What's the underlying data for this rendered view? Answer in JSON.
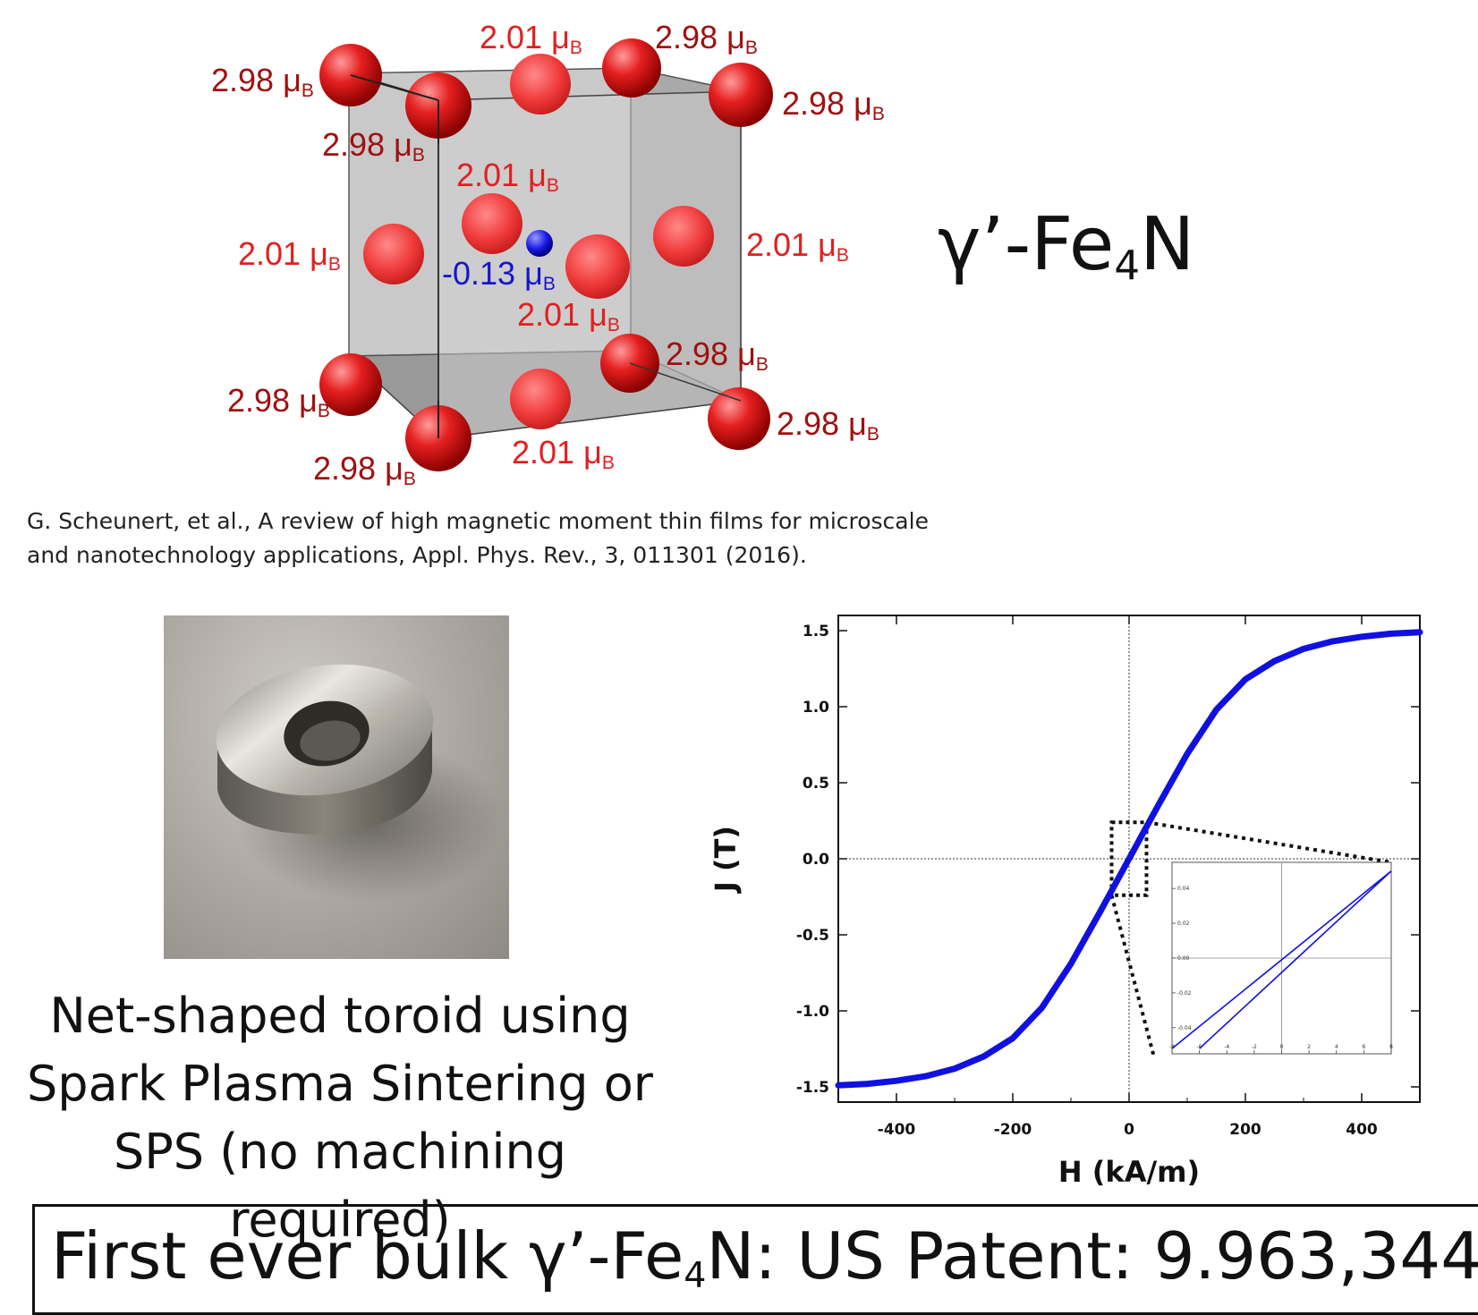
{
  "structure": {
    "formula": {
      "base": "γ’-Fe",
      "sub": "4",
      "tail": "N"
    },
    "moment_unit": "μ",
    "moment_unit_sub": "B",
    "moments": {
      "corner_top_back_left": "2.98",
      "corner_top_front_left": "2.98",
      "corner_top_back_right": "2.98",
      "corner_top_front_right": "2.98",
      "corner_bottom_back_left": "2.98",
      "corner_bottom_front_left": "2.98",
      "corner_bottom_back_right": "2.98",
      "corner_bottom_front_right": "2.98",
      "face_top": "2.01",
      "face_left": "2.01",
      "face_right": "2.01",
      "face_back": "2.01",
      "face_front": "2.01",
      "face_bottom": "2.01",
      "nitrogen_center": "-0.13"
    },
    "colors": {
      "iron_atom": "#d61c1c",
      "nitrogen_atom": "#1a1ae6",
      "corner_label": "#a01010",
      "face_label": "#e02020",
      "nitrogen_label": "#1515d0"
    }
  },
  "citation": {
    "line1": "G. Scheunert, et al., A review of high magnetic moment thin films for microscale",
    "line2": "and nanotechnology applications,  Appl. Phys. Rev., 3, 011301 (2016)."
  },
  "photo_caption": {
    "line1": "Net-shaped toroid using",
    "line2": "Spark Plasma Sintering or",
    "line3": "SPS (no machining required)"
  },
  "banner": {
    "pre": "First ever bulk γ’-Fe",
    "sub": "4",
    "post": "N:  US Patent:  9.963,344"
  },
  "chart_data": {
    "type": "line",
    "xlabel": "H (kA/m)",
    "ylabel": "J (T)",
    "xlim": [
      -500,
      500
    ],
    "ylim": [
      -1.6,
      1.6
    ],
    "x_ticks": [
      "-400",
      "-200",
      "0",
      "200",
      "400"
    ],
    "y_ticks": [
      "1.5",
      "1.0",
      "0.5",
      "0.0",
      "-0.5",
      "-1.0",
      "-1.5"
    ],
    "series": [
      {
        "color": "#1010e0",
        "x": [
          -500,
          -450,
          -400,
          -350,
          -300,
          -250,
          -200,
          -150,
          -100,
          -50,
          0,
          50,
          100,
          150,
          200,
          250,
          300,
          350,
          400,
          450,
          500
        ],
        "y": [
          -1.49,
          -1.48,
          -1.46,
          -1.43,
          -1.38,
          -1.3,
          -1.18,
          -0.98,
          -0.69,
          -0.35,
          0.0,
          0.35,
          0.69,
          0.98,
          1.18,
          1.3,
          1.38,
          1.43,
          1.46,
          1.48,
          1.49
        ]
      }
    ],
    "inset": {
      "x_ticks": [
        "-8",
        "-6",
        "-4",
        "-2",
        "0",
        "2",
        "4",
        "6",
        "8"
      ],
      "y_ticks": [
        "0.04",
        "0.02",
        "0.00",
        "-0.02",
        "-0.04"
      ],
      "xlim": [
        -8,
        8
      ],
      "ylim": [
        -0.055,
        0.055
      ],
      "branches": [
        {
          "x": [
            -8,
            8
          ],
          "y": [
            -0.052,
            0.05
          ]
        },
        {
          "x": [
            -6,
            8
          ],
          "y": [
            -0.052,
            0.05
          ]
        }
      ]
    }
  }
}
